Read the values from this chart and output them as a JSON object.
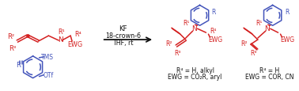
{
  "red_color": "#d42020",
  "blue_color": "#4455bb",
  "black_color": "#111111",
  "bg_color": "#ffffff",
  "fig_width": 3.78,
  "fig_height": 1.16,
  "dpi": 100,
  "reaction_conditions": [
    "KF",
    "18-crown-6",
    "THF, rt"
  ],
  "left_caption_1": "R⁴ = H, alkyl",
  "left_caption_2": "EWG = CO₂R, aryl",
  "right_caption_1": "R⁴ = H",
  "right_caption_2": "EWG = COR, CN"
}
